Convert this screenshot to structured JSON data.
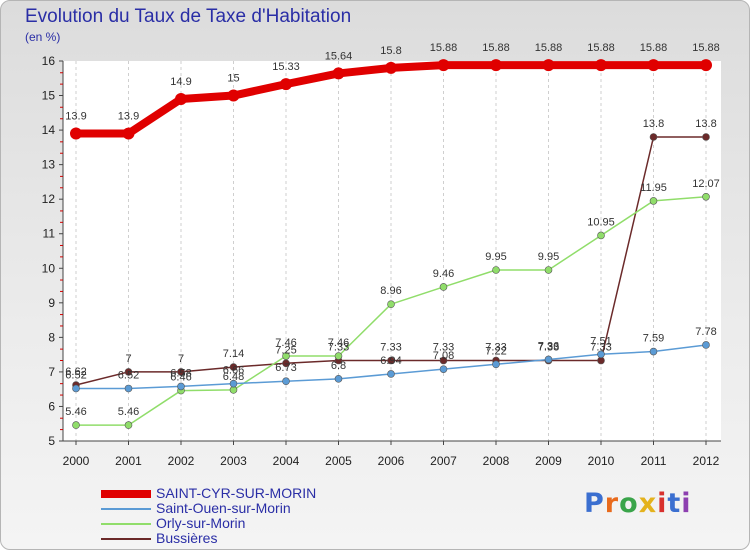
{
  "chart_data": {
    "type": "line",
    "title": "Evolution du Taux de Taxe d'Habitation",
    "unit_label": "(en %)",
    "x": [
      "2000",
      "2001",
      "2002",
      "2003",
      "2004",
      "2005",
      "2006",
      "2007",
      "2008",
      "2009",
      "2010",
      "2011",
      "2012"
    ],
    "ylim": [
      5,
      16
    ],
    "yticks": [
      5,
      6,
      7,
      8,
      9,
      10,
      11,
      12,
      13,
      14,
      15,
      16
    ],
    "grid": "vertical dashed",
    "legend_position": "bottom-left",
    "series": [
      {
        "name": "SAINT-CYR-SUR-MORIN",
        "color": "#e00000",
        "values": [
          13.9,
          13.9,
          14.9,
          15,
          15.33,
          15.64,
          15.8,
          15.88,
          15.88,
          15.88,
          15.88,
          15.88,
          15.88
        ],
        "labels": [
          "13.9",
          "13.9",
          "14.9",
          "15",
          "15.33",
          "15.64",
          "15.8",
          "15.88",
          "15.88",
          "15.88",
          "15.88",
          "15.88",
          "15.88"
        ]
      },
      {
        "name": "Saint-Ouen-sur-Morin",
        "color": "#5b9bd5",
        "values": [
          6.52,
          6.52,
          6.58,
          6.66,
          6.73,
          6.8,
          6.94,
          7.08,
          7.22,
          7.36,
          7.51,
          7.59,
          7.78
        ],
        "labels": [
          "6.52",
          "6.52",
          "6.58",
          "6.66",
          "6.73",
          "6.8",
          "6.94",
          "7.08",
          "7.22",
          "7.36",
          "7.51",
          "7.59",
          "7.78"
        ]
      },
      {
        "name": "Orly-sur-Morin",
        "color": "#90dd6a",
        "values": [
          5.46,
          5.46,
          6.46,
          6.48,
          7.46,
          7.46,
          8.96,
          9.46,
          9.95,
          9.95,
          10.95,
          11.95,
          12.07
        ],
        "labels": [
          "5.46",
          "5.46",
          "6.46",
          "6.48",
          "7.46",
          "7.46",
          "8.96",
          "9.46",
          "9.95",
          "9.95",
          "10.95",
          "11.95",
          "12.07"
        ]
      },
      {
        "name": "Bussières",
        "color": "#6b2a2a",
        "values": [
          6.62,
          7,
          7,
          7.14,
          7.25,
          7.33,
          7.33,
          7.33,
          7.33,
          7.33,
          7.33,
          13.8,
          13.8
        ],
        "labels": [
          "6.62",
          "7",
          "7",
          "7.14",
          "7.25",
          "7.33",
          "7.33",
          "7.33",
          "7.33",
          "7.33",
          "7.33",
          "13.8",
          "13.8"
        ]
      }
    ]
  },
  "logo": {
    "letters": [
      "P",
      "r",
      "o",
      "x",
      "i",
      "t",
      "i"
    ],
    "colors": [
      "#3b6fd0",
      "#e86a1c",
      "#3aa44a",
      "#e4b21d",
      "#d8312e",
      "#3b6fd0",
      "#8d3fb0"
    ]
  }
}
